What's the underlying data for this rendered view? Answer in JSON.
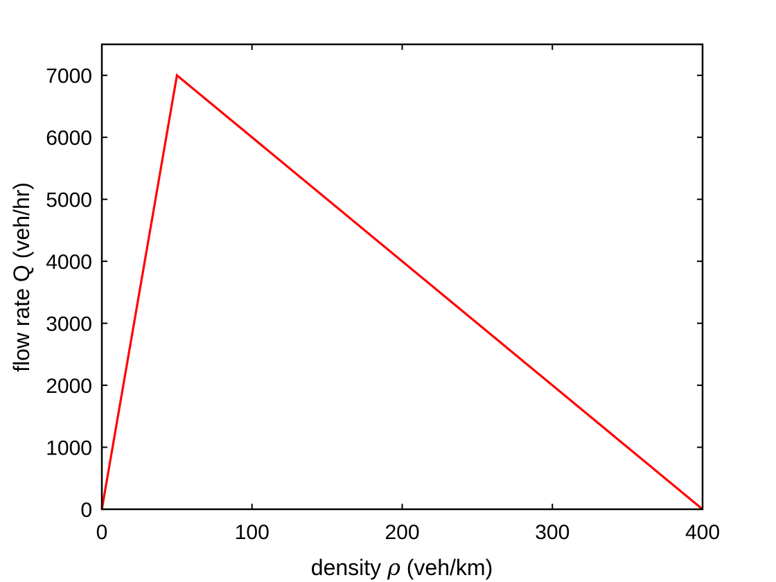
{
  "chart_data": {
    "type": "line",
    "title": "",
    "xlabel": {
      "prefix": "density ",
      "symbol": "ρ",
      "suffix": " (veh/km)"
    },
    "ylabel": "flow rate Q (veh/hr)",
    "xlim": [
      0,
      400
    ],
    "ylim": [
      0,
      7500
    ],
    "xticks": [
      0,
      100,
      200,
      300,
      400
    ],
    "yticks": [
      0,
      1000,
      2000,
      3000,
      4000,
      5000,
      6000,
      7000
    ],
    "grid": false,
    "legend": "none",
    "series": [
      {
        "color": "#ff0000",
        "x": [
          0,
          50,
          400
        ],
        "y": [
          0,
          7000,
          0
        ]
      }
    ]
  }
}
